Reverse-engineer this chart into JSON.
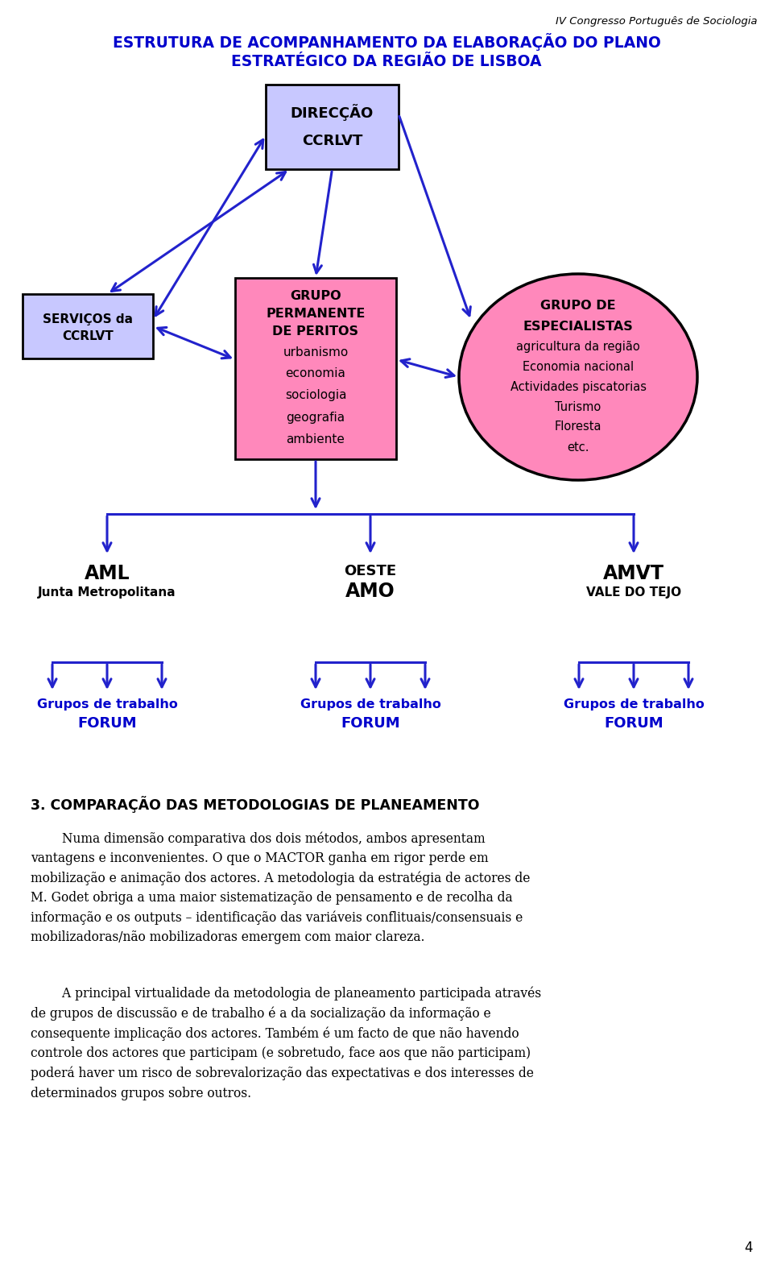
{
  "page_header": "IV Congresso Português de Sociologia",
  "page_number": "4",
  "diagram_title_line1": "ESTRUTURA DE ACOMPANHAMENTO DA ELABORAÇÃO DO PLANO",
  "diagram_title_line2": "ESTRATÉGICO DA REGIÃO DE LISBOA",
  "diagram_title_color": "#0000CC",
  "bg_color": "#FFFFFF",
  "box_direcao_fill": "#C8C8FF",
  "box_direcao_edge": "#000000",
  "box_servicos_fill": "#C8C8FF",
  "box_servicos_edge": "#000000",
  "box_grupo_perm_fill": "#FF88BB",
  "box_grupo_perm_edge": "#000000",
  "ellipse_fill": "#FF88BB",
  "ellipse_edge": "#000000",
  "arrow_color": "#2222CC",
  "forum_color": "#0000CC",
  "section_title": "3. COMPARAÇÃO DAS METODOLOGIAS DE PLANEAMENTO",
  "paragraph1_indent": "        Numa dimensão comparativa dos dois métodos, ambos apresentam\nvantagens e inconvenientes. O que o MACTOR ganha em rigor perde em\nmobilização e animação dos actores. A metodologia da estratégia de actores de\nM. Godet obriga a uma maior sistematização de pensamento e de recolha da\ninformação e os outputs – identificação das variáveis conflituais/consensuais e\nmobilizadoras/não mobilizadoras emergem com maior clareza.",
  "paragraph2_indent": "        A principal virtualidade da metodologia de planeamento participada através\nde grupos de discussão e de trabalho é a da socialização da informação e\nconsequente implicação dos actores. Também é um facto de que não havendo\ncontrole dos actores que participam (e sobretudo, face aos que não participam)\npoderá haver um risco de sobrevalorização das expectativas e dos interesses de\ndeterminados grupos sobre outros."
}
